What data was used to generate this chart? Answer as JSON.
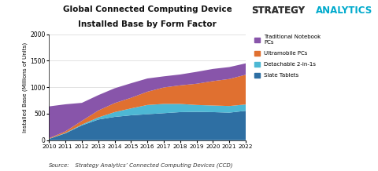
{
  "years": [
    2010,
    2011,
    2012,
    2013,
    2014,
    2015,
    2016,
    2017,
    2018,
    2019,
    2020,
    2021,
    2022
  ],
  "slate_tablets": [
    25,
    130,
    280,
    390,
    440,
    470,
    490,
    510,
    530,
    535,
    530,
    520,
    555
  ],
  "detachable_2in1s": [
    3,
    8,
    15,
    40,
    90,
    130,
    175,
    175,
    155,
    130,
    125,
    125,
    120
  ],
  "ultramobile_pcs": [
    10,
    30,
    70,
    130,
    170,
    200,
    250,
    310,
    350,
    400,
    460,
    510,
    560
  ],
  "traditional_notebook": [
    600,
    510,
    340,
    290,
    280,
    275,
    250,
    210,
    205,
    225,
    230,
    225,
    215
  ],
  "colors": {
    "slate_tablets": "#2e6fa3",
    "detachable_2in1s": "#4db8d4",
    "ultramobile_pcs": "#e07030",
    "traditional_notebook": "#8855aa"
  },
  "title_line1": "Global Connected Computing Device",
  "title_line2": "Installed Base by Form Factor",
  "ylabel": "Installed Base (Millions of Units)",
  "ylim": [
    0,
    2000
  ],
  "yticks": [
    0,
    500,
    1000,
    1500,
    2000
  ],
  "brand_strategy": "STRATEGY",
  "brand_analytics": "ANALYTICS",
  "brand_color_strategy": "#333333",
  "brand_color_analytics": "#00aacc",
  "source_label": "Source:",
  "source_body": "  Strategy Analytics’ Connected Computing Devices (CCD)",
  "legend_labels": [
    "Traditional Notebook\nPCs",
    "Ultramobile PCs",
    "Detachable 2-in-1s",
    "Slate Tablets"
  ],
  "bg_color": "#ffffff"
}
